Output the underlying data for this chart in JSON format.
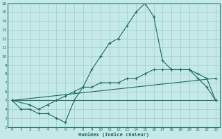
{
  "xlabel": "Humidex (Indice chaleur)",
  "bg_color": "#c5e8e8",
  "grid_color": "#a8d0d0",
  "line_color": "#1a6b5a",
  "spine_color": "#2a7a6a",
  "xlim": [
    -0.5,
    23.5
  ],
  "ylim": [
    2,
    16
  ],
  "xticks": [
    0,
    1,
    2,
    3,
    4,
    5,
    6,
    7,
    8,
    9,
    10,
    11,
    12,
    13,
    14,
    15,
    16,
    17,
    18,
    19,
    20,
    21,
    22,
    23
  ],
  "yticks": [
    2,
    3,
    4,
    5,
    6,
    7,
    8,
    9,
    10,
    11,
    12,
    13,
    14,
    15,
    16
  ],
  "lines": [
    {
      "x": [
        0,
        1,
        2,
        3,
        4,
        5,
        6,
        7,
        8,
        9,
        10,
        11,
        12,
        13,
        14,
        15,
        16,
        17,
        18,
        19,
        20,
        21,
        22,
        23
      ],
      "y": [
        5,
        4,
        4,
        3.5,
        3.5,
        3.0,
        2.5,
        5.0,
        6.5,
        8.5,
        10,
        11.5,
        12,
        13.5,
        15,
        16,
        14.5,
        9.5,
        8.5,
        8.5,
        8.5,
        7.5,
        6.5,
        5
      ]
    },
    {
      "x": [
        0,
        2,
        3,
        4,
        5,
        6,
        7,
        8,
        9,
        10,
        11,
        12,
        13,
        14,
        15,
        16,
        17,
        18,
        19,
        20,
        21,
        22,
        23
      ],
      "y": [
        5,
        4.5,
        4.0,
        4.5,
        5.0,
        5.5,
        6.0,
        6.5,
        6.5,
        7.0,
        7.0,
        7.0,
        7.5,
        7.5,
        8.0,
        8.5,
        8.5,
        8.5,
        8.5,
        8.5,
        8.0,
        7.5,
        5
      ]
    },
    {
      "x": [
        0,
        23
      ],
      "y": [
        5,
        5
      ]
    },
    {
      "x": [
        0,
        23
      ],
      "y": [
        5,
        7.5
      ]
    }
  ]
}
